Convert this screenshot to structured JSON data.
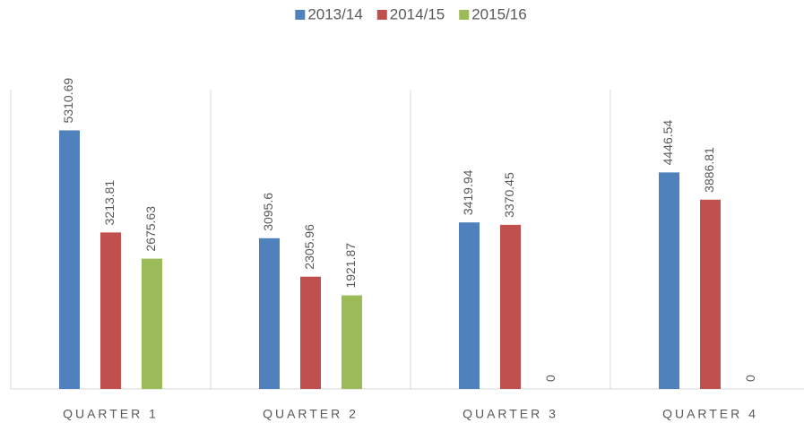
{
  "chart_data": {
    "type": "bar",
    "categories": [
      "QUARTER 1",
      "QUARTER 2",
      "QUARTER 3",
      "QUARTER 4"
    ],
    "series": [
      {
        "name": "2013/14",
        "color": "#4f81bd",
        "values": [
          5310.69,
          3095.6,
          3419.94,
          4446.54
        ]
      },
      {
        "name": "2014/15",
        "color": "#c0504d",
        "values": [
          3213.81,
          2305.96,
          3370.45,
          3886.81
        ]
      },
      {
        "name": "2015/16",
        "color": "#9bbb59",
        "values": [
          2675.63,
          1921.87,
          0,
          0
        ]
      }
    ],
    "ylim": [
      0,
      6000
    ],
    "legend": "top"
  }
}
